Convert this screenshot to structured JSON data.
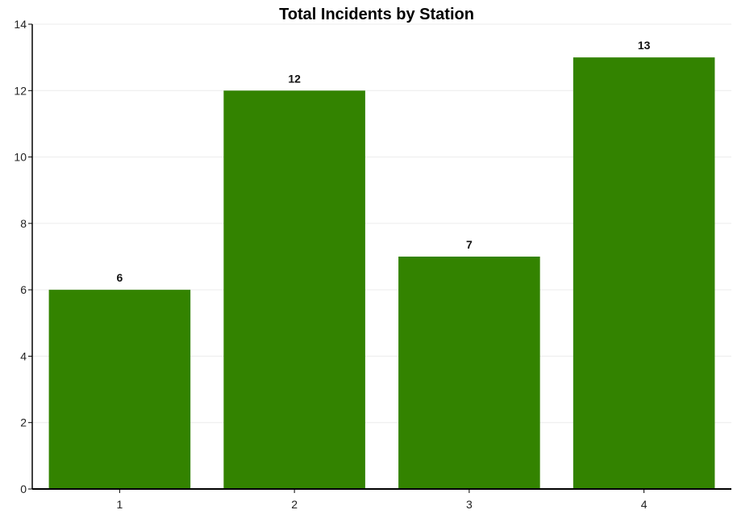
{
  "chart_data": {
    "type": "bar",
    "title": "Total Incidents by Station",
    "categories": [
      "1",
      "2",
      "3",
      "4"
    ],
    "values": [
      6,
      12,
      7,
      13
    ],
    "ylim": [
      0,
      14
    ],
    "yticks": [
      0,
      2,
      4,
      6,
      8,
      10,
      12,
      14
    ],
    "grid": true,
    "bar_color": "#338300",
    "data_labels": true
  }
}
